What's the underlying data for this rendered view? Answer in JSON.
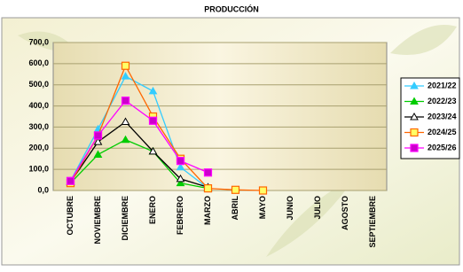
{
  "chart_data": {
    "type": "line",
    "title": "PRODUCCIÓN",
    "categories": [
      "OCTUBRE",
      "NOVIEMBRE",
      "DICIEMBRE",
      "ENERO",
      "FEBRERO",
      "MARZO",
      "ABRIL",
      "MAYO",
      "JUNIO",
      "JULIO",
      "AGOSTO",
      "SEPTIEMBRE"
    ],
    "series": [
      {
        "name": "2021/22",
        "color": "#33ccff",
        "marker": "triangle",
        "marker_fill": "#33ccff",
        "values": [
          45,
          290,
          540,
          470,
          110,
          10,
          null,
          null,
          null,
          null,
          null,
          null
        ]
      },
      {
        "name": "2022/23",
        "color": "#00cc00",
        "marker": "triangle",
        "marker_fill": "#00cc00",
        "values": [
          35,
          170,
          240,
          185,
          35,
          10,
          null,
          null,
          null,
          null,
          null,
          null
        ]
      },
      {
        "name": "2023/24",
        "color": "#000000",
        "marker": "triangle",
        "marker_fill": "#ffffff",
        "values": [
          40,
          230,
          325,
          185,
          55,
          15,
          null,
          null,
          null,
          null,
          null,
          null
        ]
      },
      {
        "name": "2024/25",
        "color": "#ff6600",
        "marker": "square",
        "marker_fill": "#ffff66",
        "values": [
          35,
          260,
          590,
          350,
          150,
          10,
          3,
          0,
          null,
          null,
          null,
          null
        ]
      },
      {
        "name": "2025/26",
        "color": "#ff00ff",
        "marker": "square",
        "marker_fill": "#cc00cc",
        "values": [
          45,
          260,
          425,
          330,
          140,
          85,
          null,
          null,
          null,
          null,
          null,
          null
        ]
      }
    ],
    "ylim": [
      0,
      700
    ],
    "yticks": [
      {
        "value": 0,
        "label": "0,0"
      },
      {
        "value": 100,
        "label": "100,0"
      },
      {
        "value": 200,
        "label": "200,0"
      },
      {
        "value": 300,
        "label": "300,0"
      },
      {
        "value": 400,
        "label": "400,0"
      },
      {
        "value": 500,
        "label": "500,0"
      },
      {
        "value": 600,
        "label": "600,0"
      },
      {
        "value": 700,
        "label": "700,0"
      }
    ],
    "grid": true,
    "legend": "right"
  }
}
